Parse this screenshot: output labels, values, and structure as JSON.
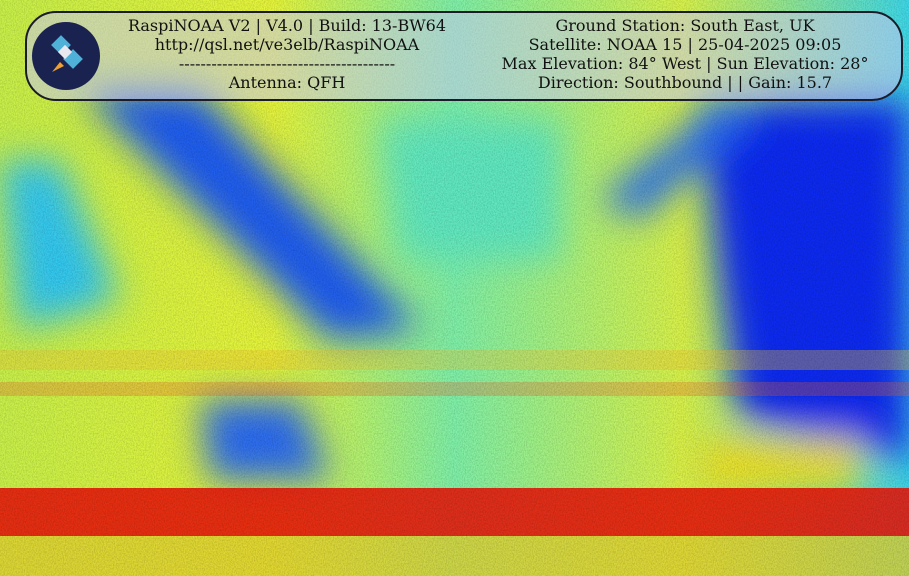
{
  "header": {
    "left": [
      "RaspiNOAA V2 | V4.0 | Build: 13-BW64",
      "http://qsl.net/ve3elb/RaspiNOAA",
      "----------------------------------------",
      "Antenna: QFH"
    ],
    "right": [
      "Ground Station: South East, UK",
      "Satellite: NOAA 15 | 25-04-2025 09:05",
      "Max Elevation: 84° West | Sun Elevation: 28°",
      "Direction: Southbound | | Gain: 15.7"
    ]
  }
}
